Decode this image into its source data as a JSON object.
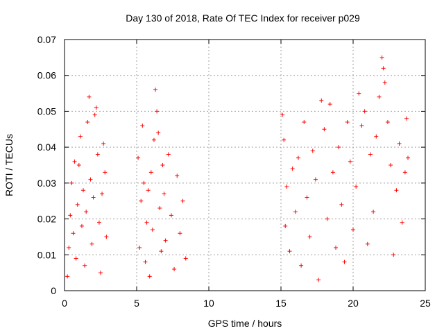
{
  "chart_data": {
    "type": "scatter",
    "title": "Day 130 of 2018, Rate Of TEC Index for receiver p029",
    "xlabel": "GPS time / hours",
    "ylabel": "ROTI / TECUs",
    "xlim": [
      0,
      25
    ],
    "ylim": [
      0,
      0.07
    ],
    "xticks": [
      "0",
      "5",
      "10",
      "15",
      "20",
      "25"
    ],
    "yticks": [
      "0",
      "0.01",
      "0.02",
      "0.03",
      "0.04",
      "0.05",
      "0.06",
      "0.07"
    ],
    "grid": true,
    "marker": "+",
    "marker_color": "#ff0000",
    "series": [
      {
        "points": [
          [
            0.2,
            0.004
          ],
          [
            0.3,
            0.012
          ],
          [
            0.4,
            0.021
          ],
          [
            0.5,
            0.03
          ],
          [
            0.6,
            0.016
          ],
          [
            0.7,
            0.036
          ],
          [
            0.8,
            0.009
          ],
          [
            0.9,
            0.024
          ],
          [
            1.0,
            0.035
          ],
          [
            1.1,
            0.043
          ],
          [
            1.2,
            0.018
          ],
          [
            1.3,
            0.028
          ],
          [
            1.4,
            0.007
          ],
          [
            1.5,
            0.022
          ],
          [
            1.6,
            0.047
          ],
          [
            1.7,
            0.054
          ],
          [
            1.8,
            0.031
          ],
          [
            1.9,
            0.013
          ],
          [
            2.0,
            0.026
          ],
          [
            2.1,
            0.049
          ],
          [
            2.2,
            0.051
          ],
          [
            2.3,
            0.038
          ],
          [
            2.4,
            0.019
          ],
          [
            2.5,
            0.005
          ],
          [
            2.6,
            0.027
          ],
          [
            2.7,
            0.041
          ],
          [
            2.8,
            0.033
          ],
          [
            2.9,
            0.015
          ],
          [
            5.1,
            0.037
          ],
          [
            5.2,
            0.012
          ],
          [
            5.3,
            0.025
          ],
          [
            5.4,
            0.046
          ],
          [
            5.5,
            0.03
          ],
          [
            5.6,
            0.008
          ],
          [
            5.7,
            0.019
          ],
          [
            5.8,
            0.028
          ],
          [
            5.9,
            0.004
          ],
          [
            6.0,
            0.033
          ],
          [
            6.1,
            0.017
          ],
          [
            6.2,
            0.042
          ],
          [
            6.3,
            0.056
          ],
          [
            6.4,
            0.05
          ],
          [
            6.5,
            0.044
          ],
          [
            6.6,
            0.023
          ],
          [
            6.7,
            0.011
          ],
          [
            6.8,
            0.035
          ],
          [
            6.9,
            0.027
          ],
          [
            7.0,
            0.014
          ],
          [
            7.2,
            0.038
          ],
          [
            7.4,
            0.021
          ],
          [
            7.6,
            0.006
          ],
          [
            7.8,
            0.032
          ],
          [
            8.0,
            0.016
          ],
          [
            8.2,
            0.025
          ],
          [
            8.4,
            0.009
          ],
          [
            15.1,
            0.049
          ],
          [
            15.2,
            0.042
          ],
          [
            15.3,
            0.018
          ],
          [
            15.4,
            0.029
          ],
          [
            15.6,
            0.011
          ],
          [
            15.8,
            0.034
          ],
          [
            16.0,
            0.022
          ],
          [
            16.2,
            0.037
          ],
          [
            16.4,
            0.007
          ],
          [
            16.6,
            0.047
          ],
          [
            16.8,
            0.026
          ],
          [
            17.0,
            0.015
          ],
          [
            17.2,
            0.039
          ],
          [
            17.4,
            0.031
          ],
          [
            17.6,
            0.003
          ],
          [
            17.8,
            0.053
          ],
          [
            18.0,
            0.045
          ],
          [
            18.2,
            0.02
          ],
          [
            18.4,
            0.052
          ],
          [
            18.6,
            0.033
          ],
          [
            18.8,
            0.012
          ],
          [
            19.0,
            0.04
          ],
          [
            19.2,
            0.024
          ],
          [
            19.4,
            0.008
          ],
          [
            19.6,
            0.047
          ],
          [
            19.8,
            0.036
          ],
          [
            20.0,
            0.017
          ],
          [
            20.2,
            0.029
          ],
          [
            20.4,
            0.055
          ],
          [
            20.6,
            0.046
          ],
          [
            20.8,
            0.05
          ],
          [
            21.0,
            0.013
          ],
          [
            21.2,
            0.038
          ],
          [
            21.4,
            0.022
          ],
          [
            21.6,
            0.043
          ],
          [
            21.8,
            0.054
          ],
          [
            22.0,
            0.065
          ],
          [
            22.1,
            0.062
          ],
          [
            22.2,
            0.058
          ],
          [
            22.4,
            0.047
          ],
          [
            22.6,
            0.035
          ],
          [
            22.8,
            0.01
          ],
          [
            23.0,
            0.028
          ],
          [
            23.2,
            0.041
          ],
          [
            23.4,
            0.019
          ],
          [
            23.6,
            0.033
          ],
          [
            23.7,
            0.048
          ],
          [
            23.8,
            0.037
          ]
        ]
      }
    ]
  }
}
